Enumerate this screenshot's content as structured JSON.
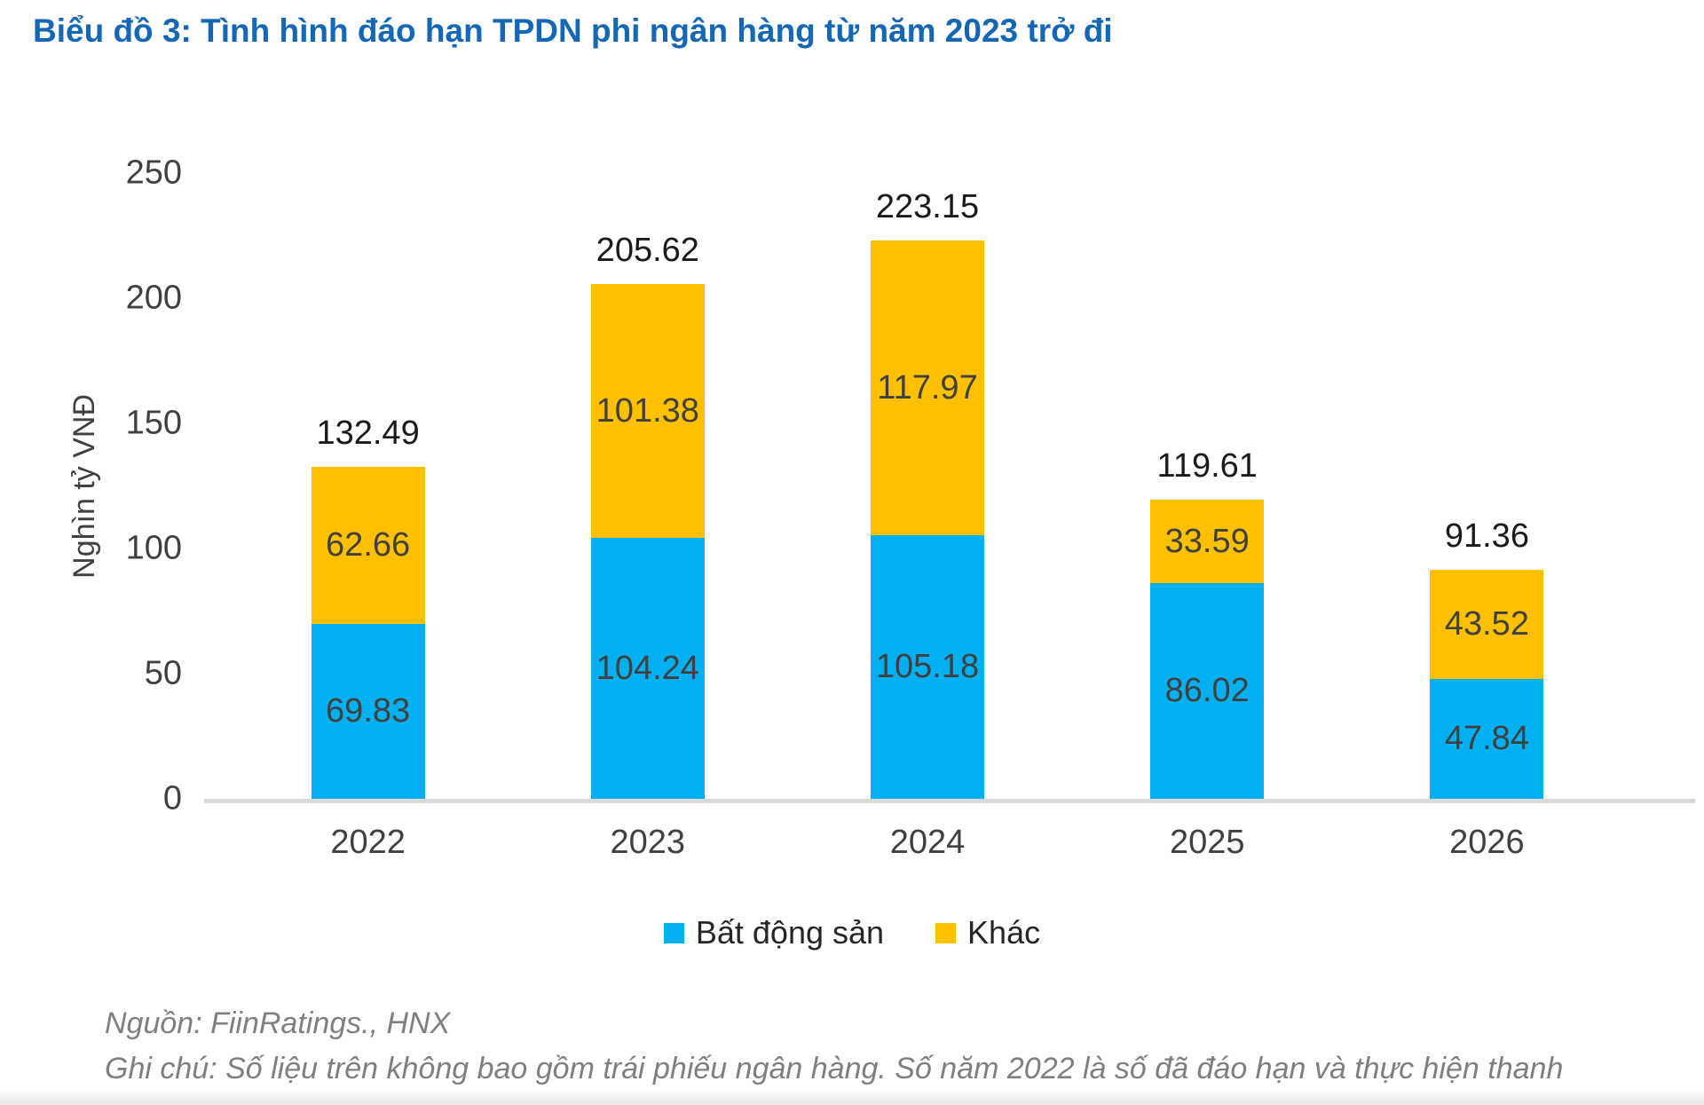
{
  "page": {
    "title": "Biểu đồ 3: Tình hình đáo hạn TPDN phi ngân hàng từ năm 2023 trở đi",
    "title_color": "#1467B4"
  },
  "chart_data": {
    "type": "bar",
    "stacked": true,
    "title": "Biểu đồ 3: Tình hình đáo hạn TPDN phi ngân hàng từ năm 2023 trở đi",
    "xlabel": "",
    "ylabel": "Nghìn tỷ VNĐ",
    "categories": [
      "2022",
      "2023",
      "2024",
      "2025",
      "2026"
    ],
    "series": [
      {
        "name": "Bất động sản",
        "color": "#00B0F0",
        "values": [
          69.83,
          104.24,
          105.18,
          86.02,
          47.84
        ]
      },
      {
        "name": "Khác",
        "color": "#FFC000",
        "values": [
          62.66,
          101.38,
          117.97,
          33.59,
          43.52
        ]
      }
    ],
    "totals": [
      132.49,
      205.62,
      223.15,
      119.61,
      91.36
    ],
    "ylim": [
      0,
      250
    ],
    "ytick_step": 50,
    "grid": false,
    "legend_position": "bottom",
    "axis_line_color": "#D9D9D9",
    "label_color": "#404040",
    "total_label_color": "#1A1A1A"
  },
  "footer": {
    "source": "Nguồn: FiinRatings., HNX",
    "note": "Ghi chú: Số liệu trên không bao gồm trái phiếu ngân hàng. Số năm 2022 là số đã đáo hạn và thực hiện thanh"
  }
}
